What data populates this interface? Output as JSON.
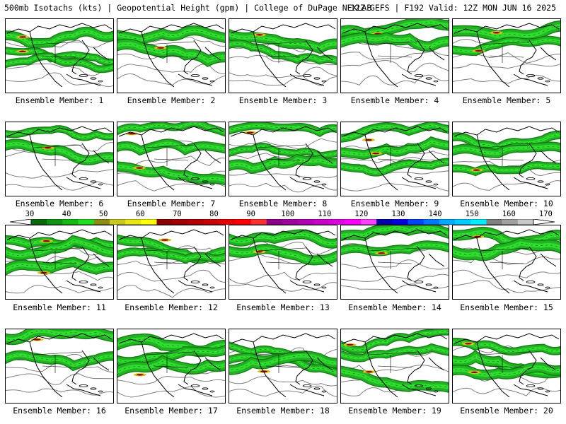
{
  "header": {
    "title": "500mb Isotachs (kts) | Geopotential Height (gpm) | College of DuPage NEXLAB",
    "run_info": "12Z GEFS | F192 Valid: 12Z MON JUN 16 2025"
  },
  "members": [
    {
      "label": "Ensemble Member: 1"
    },
    {
      "label": "Ensemble Member: 2"
    },
    {
      "label": "Ensemble Member: 3"
    },
    {
      "label": "Ensemble Member: 4"
    },
    {
      "label": "Ensemble Member: 5"
    },
    {
      "label": "Ensemble Member: 6"
    },
    {
      "label": "Ensemble Member: 7"
    },
    {
      "label": "Ensemble Member: 8"
    },
    {
      "label": "Ensemble Member: 9"
    },
    {
      "label": "Ensemble Member: 10"
    },
    {
      "label": "Ensemble Member: 11"
    },
    {
      "label": "Ensemble Member: 12"
    },
    {
      "label": "Ensemble Member: 13"
    },
    {
      "label": "Ensemble Member: 14"
    },
    {
      "label": "Ensemble Member: 15"
    },
    {
      "label": "Ensemble Member: 16"
    },
    {
      "label": "Ensemble Member: 17"
    },
    {
      "label": "Ensemble Member: 18"
    },
    {
      "label": "Ensemble Member: 19"
    },
    {
      "label": "Ensemble Member: 20"
    }
  ],
  "colorbar": {
    "labels": [
      "30",
      "40",
      "50",
      "60",
      "70",
      "80",
      "90",
      "100",
      "110",
      "120",
      "130",
      "140",
      "150",
      "160",
      "170"
    ],
    "colors": [
      "#0b6b0b",
      "#119411",
      "#16b816",
      "#1ee01e",
      "#8c8c14",
      "#c8c81e",
      "#e6e614",
      "#ffff00",
      "#8b0000",
      "#a00000",
      "#b40000",
      "#c80000",
      "#e60000",
      "#ff0000",
      "#ff3030",
      "#8b008b",
      "#a000a0",
      "#b400b4",
      "#c800c8",
      "#dd00dd",
      "#ff00ff",
      "#ff40ff",
      "#0000aa",
      "#0000dd",
      "#0044ff",
      "#0077ff",
      "#00aaff",
      "#00ccff",
      "#00eeff",
      "#808080",
      "#a0a0a0",
      "#c8c8c8"
    ]
  },
  "map_colors": {
    "jet_dark": "#0f7a0f",
    "jet_mid": "#22b322",
    "jet_light": "#2fdc2f",
    "jet_core_yellow": "#d4c41a",
    "jet_core_red": "#8b0000",
    "height_contour": "#808080",
    "coastline": "#000000"
  }
}
